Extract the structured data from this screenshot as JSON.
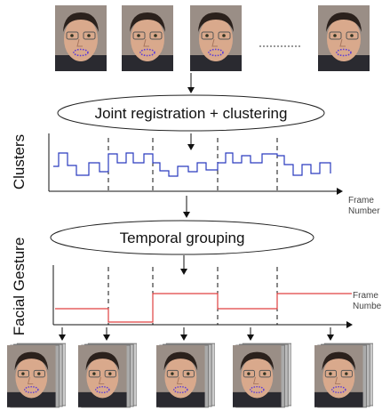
{
  "stage1": {
    "label": "Joint registration + clustering"
  },
  "plot1": {
    "axis_label": "Clusters",
    "x_label": {
      "line1": "Frame",
      "line2": "Number"
    }
  },
  "stage2": {
    "label": "Temporal grouping"
  },
  "plot2": {
    "axis_label": "Facial Gesture",
    "x_label": {
      "line1": "Frame",
      "line2": "Numbe"
    }
  }
}
